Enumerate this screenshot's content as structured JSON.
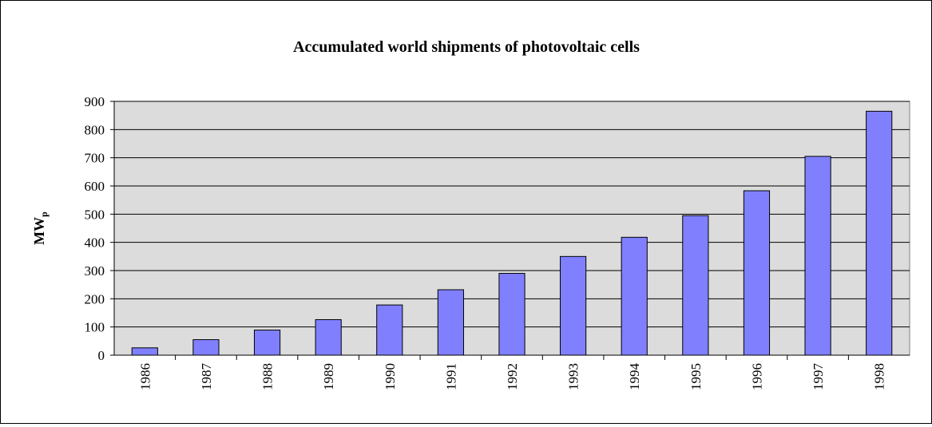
{
  "chart_data": {
    "type": "bar",
    "title": "Accumulated world shipments of photovoltaic cells",
    "ylabel": "MW",
    "ylabel_subscript": "p",
    "xlabel": "",
    "categories": [
      "1986",
      "1987",
      "1988",
      "1989",
      "1990",
      "1991",
      "1992",
      "1993",
      "1994",
      "1995",
      "1996",
      "1997",
      "1998"
    ],
    "values": [
      26,
      55,
      89,
      126,
      178,
      232,
      290,
      350,
      418,
      495,
      583,
      705,
      865
    ],
    "ylim": [
      0,
      900
    ],
    "yticks": [
      "0",
      "100",
      "200",
      "300",
      "400",
      "500",
      "600",
      "700",
      "800",
      "900"
    ],
    "grid": true,
    "legend": "none",
    "colors": {
      "bar_fill": "#8080ff",
      "bar_stroke": "#000000",
      "plot_background": "#dcdcdc",
      "gridline": "#000000"
    }
  }
}
